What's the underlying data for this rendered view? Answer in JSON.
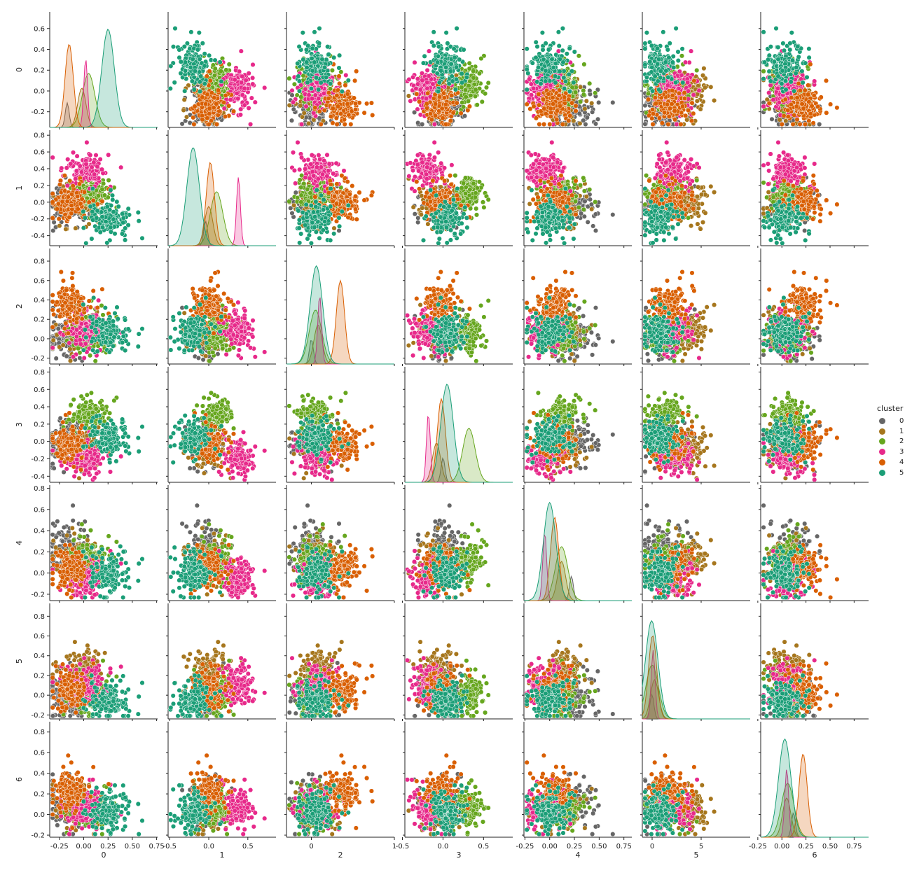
{
  "chart_data": {
    "type": "scatter",
    "subtype": "pairplot",
    "variables": [
      "0",
      "1",
      "2",
      "3",
      "4",
      "5",
      "6"
    ],
    "diagonal": "kde",
    "hue": "cluster",
    "legend": {
      "title": "cluster",
      "placement": "right",
      "entries": [
        "0",
        "1",
        "2",
        "3",
        "4",
        "5"
      ]
    },
    "colors": {
      "0": "#666666",
      "1": "#a6761d",
      "2": "#66a61e",
      "3": "#e7298a",
      "4": "#d95f02",
      "5": "#1b9e77"
    },
    "ranges": {
      "0": [
        -0.35,
        0.76
      ],
      "1": [
        -0.52,
        0.86
      ],
      "2": [
        -0.26,
        0.93
      ],
      "3": [
        -0.47,
        0.86
      ],
      "4": [
        -0.26,
        0.83
      ],
      "5": [
        -0.24,
        0.93
      ],
      "6": [
        -0.22,
        0.9
      ]
    },
    "yticks": {
      "0": [
        "-0.2",
        "0.0",
        "0.2",
        "0.4",
        "0.6"
      ],
      "1": [
        "-0.4",
        "-0.2",
        "0.0",
        "0.2",
        "0.4",
        "0.6",
        "0.8"
      ],
      "2": [
        "-0.2",
        "0.0",
        "0.2",
        "0.4",
        "0.6",
        "0.8"
      ],
      "3": [
        "-0.4",
        "-0.2",
        "0.0",
        "0.2",
        "0.4",
        "0.6",
        "0.8"
      ],
      "4": [
        "-0.2",
        "0.0",
        "0.2",
        "0.4",
        "0.6",
        "0.8"
      ],
      "5": [
        "-0.2",
        "0.0",
        "0.2",
        "0.4",
        "0.6",
        "0.8"
      ],
      "6": [
        "-0.2",
        "0.0",
        "0.2",
        "0.4",
        "0.6",
        "0.8"
      ]
    },
    "xticks": {
      "0": [
        "-0.25",
        "0.00",
        "0.25",
        "0.50",
        "0.75"
      ],
      "1": [
        "-0.5",
        "0.0",
        "0.5"
      ],
      "2": [
        "0",
        "1"
      ],
      "3": [
        "-0.5",
        "0.0",
        "0.5"
      ],
      "4": [
        "-0.25",
        "0.00",
        "0.25",
        "0.50",
        "0.75"
      ],
      "5": [
        "0",
        "5"
      ],
      "6": [
        "-0.25",
        "0.00",
        "0.25",
        "0.50",
        "0.75"
      ]
    },
    "xtick_values": {
      "0": [
        -0.25,
        0.0,
        0.25,
        0.5,
        0.75
      ],
      "1": [
        -0.5,
        0.0,
        0.5
      ],
      "2": [
        0,
        1
      ],
      "3": [
        -0.5,
        0.0,
        0.5
      ],
      "4": [
        -0.25,
        0.0,
        0.25,
        0.5,
        0.75
      ],
      "5": [
        0,
        5
      ],
      "6": [
        -0.25,
        0.0,
        0.25,
        0.5,
        0.75
      ]
    },
    "diag_xlim": {
      "2": [
        -0.3,
        1.0
      ],
      "5": [
        -1.0,
        10.0
      ]
    },
    "points_per_cluster": 170,
    "cluster_centroids": {
      "0": [
        -0.17,
        -0.04,
        0.0,
        0.0,
        0.22,
        -0.02,
        0.12
      ],
      "1": [
        -0.02,
        0.0,
        0.08,
        -0.08,
        0.12,
        0.25,
        0.05
      ],
      "2": [
        0.05,
        0.1,
        0.05,
        0.32,
        0.12,
        0.0,
        0.06
      ],
      "3": [
        0.02,
        0.38,
        0.1,
        -0.18,
        -0.05,
        0.1,
        0.05
      ],
      "4": [
        -0.15,
        0.02,
        0.35,
        -0.02,
        0.05,
        0.05,
        0.22
      ],
      "5": [
        0.25,
        -0.2,
        0.06,
        0.05,
        0.0,
        -0.05,
        0.03
      ]
    }
  }
}
